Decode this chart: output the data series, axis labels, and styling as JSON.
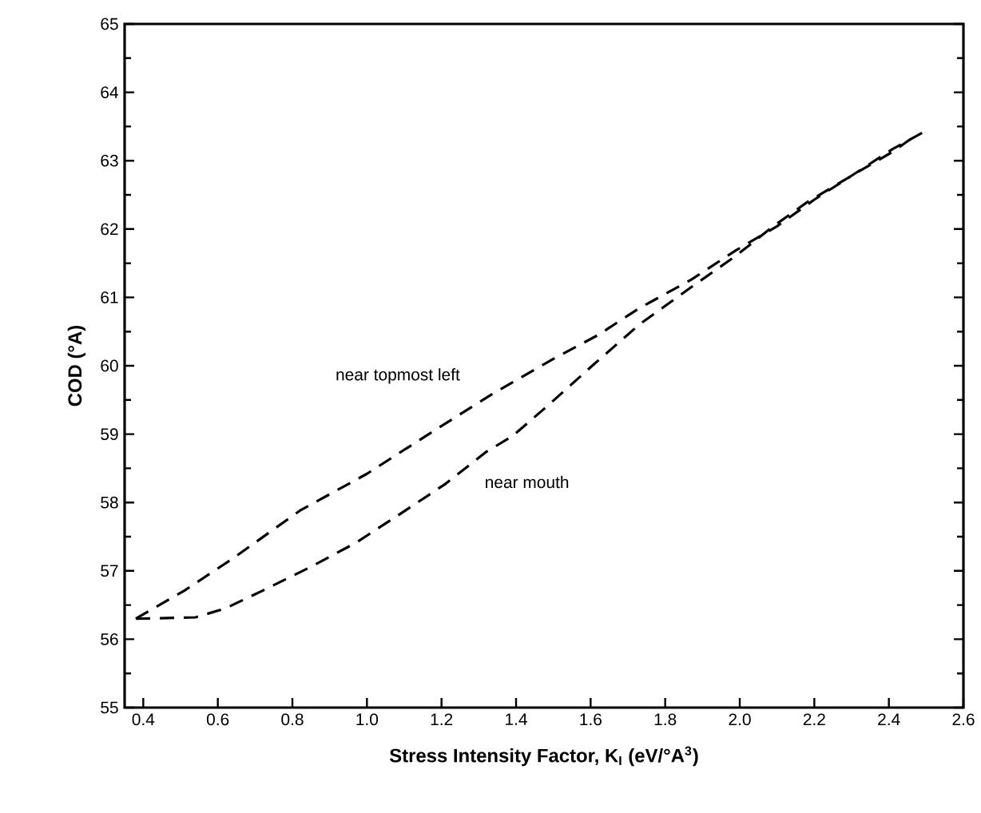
{
  "chart_data": {
    "type": "line",
    "xlabel": "**Stress Intensity Factor, K$_{I}$ (eV/°A$^{3}$)**",
    "ylabel": "**COD (°A)**",
    "xlim": [
      0.35,
      2.6
    ],
    "ylim": [
      55,
      65
    ],
    "xticks": [
      {
        "value": 0.4,
        "label": "0.4"
      },
      {
        "value": 0.6,
        "label": "0.6"
      },
      {
        "value": 0.8,
        "label": "0.8"
      },
      {
        "value": 1.0,
        "label": "1.0"
      },
      {
        "value": 1.2,
        "label": "1.2"
      },
      {
        "value": 1.4,
        "label": "1.4"
      },
      {
        "value": 1.6,
        "label": "1.6"
      },
      {
        "value": 1.8,
        "label": "1.8"
      },
      {
        "value": 2.0,
        "label": "2.0"
      },
      {
        "value": 2.2,
        "label": "2.2"
      },
      {
        "value": 2.4,
        "label": "2.4"
      },
      {
        "value": 2.6,
        "label": "2.6"
      }
    ],
    "yticks": [
      55,
      56,
      57,
      58,
      59,
      60,
      61,
      62,
      63,
      64,
      65
    ],
    "line_style": "dashed",
    "series": [
      {
        "name": "near topmost left",
        "color": "#000000",
        "x": [
          0.38,
          0.51,
          0.64,
          0.82,
          1.0,
          1.18,
          1.34,
          1.5,
          1.62,
          1.73,
          1.87,
          1.99,
          2.1,
          2.2,
          2.3,
          2.41,
          2.5
        ],
        "values": [
          56.3,
          56.71,
          57.18,
          57.88,
          58.42,
          59.05,
          59.6,
          60.1,
          60.45,
          60.84,
          61.26,
          61.69,
          62.04,
          62.43,
          62.78,
          63.17,
          63.44
        ]
      },
      {
        "name": "near mouth",
        "color": "#000000",
        "x": [
          0.38,
          0.54,
          0.62,
          0.72,
          0.85,
          0.97,
          1.08,
          1.21,
          1.32,
          1.39,
          1.49,
          1.6,
          1.73,
          1.87,
          1.99,
          2.09,
          2.18,
          2.3,
          2.41,
          2.48
        ],
        "values": [
          56.3,
          56.32,
          56.45,
          56.71,
          57.06,
          57.41,
          57.8,
          58.27,
          58.74,
          58.97,
          59.44,
          59.98,
          60.6,
          61.15,
          61.61,
          62.04,
          62.39,
          62.78,
          63.13,
          63.4
        ]
      }
    ]
  }
}
